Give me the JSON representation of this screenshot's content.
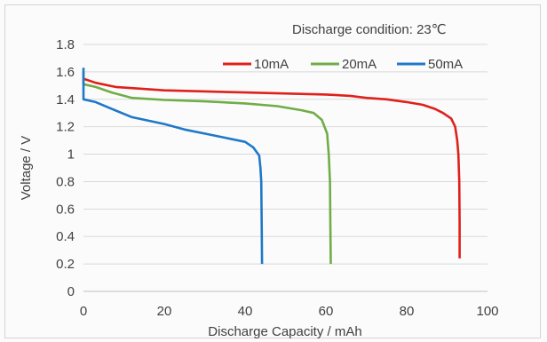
{
  "chart_data": {
    "type": "line",
    "annotation": "Discharge condition: 23℃",
    "xlabel": "Discharge Capacity / mAh",
    "ylabel": "Voltage / V",
    "xlim": [
      0,
      100
    ],
    "ylim": [
      0,
      1.8
    ],
    "xticks": [
      "0",
      "20",
      "40",
      "60",
      "80",
      "100"
    ],
    "yticks": [
      "0",
      "0.2",
      "0.4",
      "0.6",
      "0.8",
      "1",
      "1.2",
      "1.4",
      "1.6",
      "1.8"
    ],
    "grid": "horizontal",
    "legend": "top-right",
    "series": [
      {
        "name": "10mA",
        "color": "#e0201a",
        "points": [
          [
            0,
            1.55
          ],
          [
            3,
            1.52
          ],
          [
            8,
            1.49
          ],
          [
            20,
            1.465
          ],
          [
            40,
            1.45
          ],
          [
            60,
            1.435
          ],
          [
            66,
            1.425
          ],
          [
            70,
            1.41
          ],
          [
            75,
            1.4
          ],
          [
            80,
            1.38
          ],
          [
            84,
            1.36
          ],
          [
            87,
            1.33
          ],
          [
            89,
            1.3
          ],
          [
            91,
            1.26
          ],
          [
            92,
            1.2
          ],
          [
            92.5,
            1.1
          ],
          [
            92.8,
            1.0
          ],
          [
            93,
            0.8
          ],
          [
            93.1,
            0.5
          ],
          [
            93.1,
            0.24
          ]
        ]
      },
      {
        "name": "20mA",
        "color": "#70ad47",
        "points": [
          [
            0,
            1.6
          ],
          [
            0,
            1.51
          ],
          [
            3,
            1.49
          ],
          [
            7,
            1.45
          ],
          [
            12,
            1.41
          ],
          [
            20,
            1.395
          ],
          [
            30,
            1.385
          ],
          [
            40,
            1.37
          ],
          [
            48,
            1.35
          ],
          [
            54,
            1.32
          ],
          [
            57,
            1.3
          ],
          [
            59,
            1.25
          ],
          [
            60.3,
            1.15
          ],
          [
            60.7,
            1.0
          ],
          [
            61,
            0.8
          ],
          [
            61.1,
            0.5
          ],
          [
            61.2,
            0.2
          ]
        ]
      },
      {
        "name": "50mA",
        "color": "#1f78c8",
        "points": [
          [
            0,
            1.63
          ],
          [
            0,
            1.4
          ],
          [
            3,
            1.38
          ],
          [
            7,
            1.33
          ],
          [
            12,
            1.27
          ],
          [
            20,
            1.22
          ],
          [
            25,
            1.18
          ],
          [
            30,
            1.15
          ],
          [
            35,
            1.12
          ],
          [
            40,
            1.09
          ],
          [
            42,
            1.05
          ],
          [
            43.5,
            0.99
          ],
          [
            43.8,
            0.9
          ],
          [
            44,
            0.8
          ],
          [
            44.1,
            0.5
          ],
          [
            44.2,
            0.2
          ]
        ]
      }
    ]
  }
}
